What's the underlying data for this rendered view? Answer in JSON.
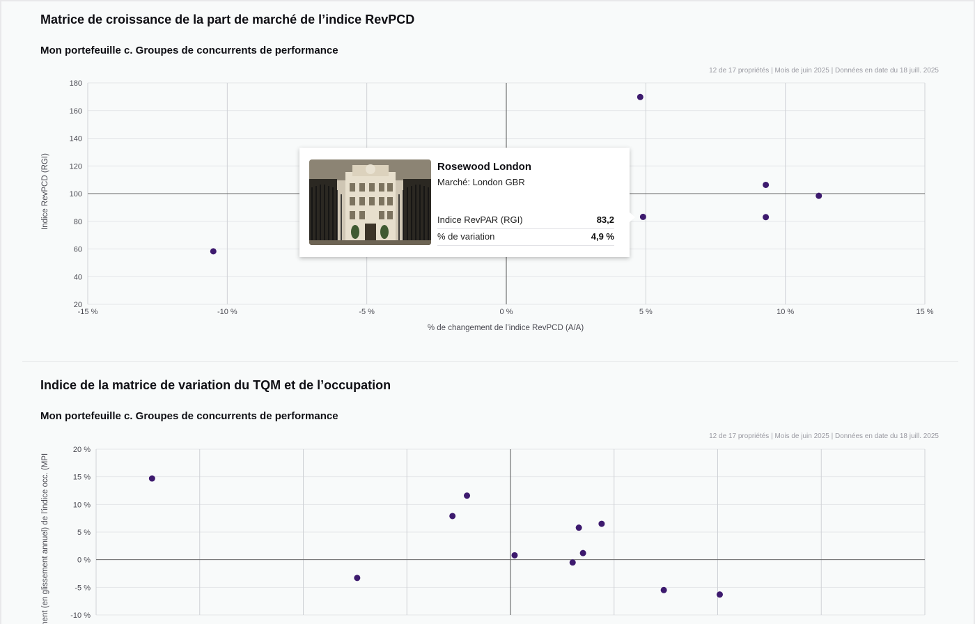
{
  "section1": {
    "title": "Matrice de croissance de la part de marché de l’indice RevPCD",
    "subtitle": "Mon portefeuille c. Groupes de concurrents de performance",
    "meta": "12 de 17 propriétés | Mois de juin 2025 | Données en date du 18 juill. 2025"
  },
  "section2": {
    "title": "Indice de la matrice de variation du TQM et de l’occupation",
    "subtitle": "Mon portefeuille c. Groupes de concurrents de performance",
    "meta": "12 de 17 propriétés | Mois de juin 2025 | Données en date du 18 juill. 2025"
  },
  "tooltip": {
    "name": "Rosewood London",
    "market": "Marché: London GBR",
    "rows": [
      {
        "label": "Indice RevPAR (RGI)",
        "value": "83,2"
      },
      {
        "label": "% de variation",
        "value": "4,9 %"
      }
    ]
  },
  "chart_data": [
    {
      "type": "scatter",
      "xlabel": "% de changement de l’indice RevPCD (A/A)",
      "ylabel": "Indice RevPCD (RGI)",
      "xlim": [
        -15,
        15
      ],
      "ylim": [
        20,
        180
      ],
      "xticks": [
        -15,
        -10,
        -5,
        0,
        5,
        10,
        15
      ],
      "xtick_labels": [
        "-15 %",
        "-10 %",
        "-5 %",
        "0 %",
        "5 %",
        "10 %",
        "15 %"
      ],
      "yticks": [
        20,
        40,
        60,
        80,
        100,
        120,
        140,
        160,
        180
      ],
      "ytick_labels": [
        "20",
        "40",
        "60",
        "80",
        "100",
        "120",
        "140",
        "160",
        "180"
      ],
      "reference_lines": {
        "x": 0,
        "y": 100
      },
      "grid": true,
      "point_color": "#3d1a6e",
      "points": [
        {
          "x": -10.5,
          "y": 58.3
        },
        {
          "x": 4.8,
          "y": 169.8
        },
        {
          "x": 4.9,
          "y": 83.2
        },
        {
          "x": 9.3,
          "y": 106.3
        },
        {
          "x": 9.3,
          "y": 83.0
        },
        {
          "x": 11.2,
          "y": 98.4
        }
      ]
    },
    {
      "type": "scatter",
      "xlabel": "",
      "ylabel": "ment (en glissement annuel) de l’indice occ. (MPI",
      "ylim": [
        -10,
        20
      ],
      "yticks": [
        -10,
        -5,
        0,
        5,
        10,
        15,
        20
      ],
      "ytick_labels": [
        "-10 %",
        "-5 %",
        "0 %",
        "5 %",
        "10 %",
        "15 %",
        "20 %"
      ],
      "xlim": [
        -20,
        20
      ],
      "x_gridlines": [
        -20,
        -15,
        -10,
        -5,
        0,
        5,
        10,
        15,
        20
      ],
      "reference_lines": {
        "x": 0,
        "y": 0
      },
      "grid": true,
      "point_color": "#3d1a6e",
      "points": [
        {
          "x": -17.3,
          "y": 14.7
        },
        {
          "x": -7.4,
          "y": -3.3
        },
        {
          "x": -2.8,
          "y": 7.9
        },
        {
          "x": -2.1,
          "y": 11.6
        },
        {
          "x": 0.2,
          "y": 0.8
        },
        {
          "x": 3.0,
          "y": -0.5
        },
        {
          "x": 3.3,
          "y": 5.8
        },
        {
          "x": 3.5,
          "y": 1.2
        },
        {
          "x": 4.4,
          "y": 6.5
        },
        {
          "x": 7.4,
          "y": -5.5
        },
        {
          "x": 10.1,
          "y": -6.3
        }
      ]
    }
  ]
}
